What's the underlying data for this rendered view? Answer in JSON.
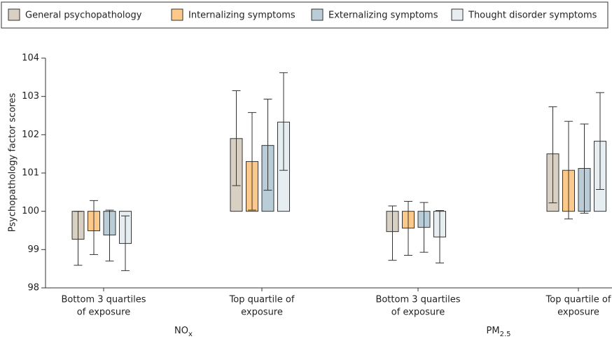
{
  "chart_data": {
    "type": "bar",
    "ylabel": "Psychopathology factor scores",
    "categories": [
      [
        "Bottom 3 quartiles",
        "of exposure"
      ],
      [
        "Top quartile of",
        "exposure"
      ],
      [
        "Bottom 3 quartiles",
        "of exposure"
      ],
      [
        "Top quartile of",
        "exposure"
      ]
    ],
    "groups": [
      {
        "main": "NO",
        "sub": "x"
      },
      {
        "main": "PM",
        "sub": "2.5"
      }
    ],
    "baseline": 100,
    "ylim": [
      98,
      104
    ],
    "yticks": [
      98,
      99,
      100,
      101,
      102,
      103,
      104
    ],
    "series": [
      {
        "name": "General psychopathology",
        "color": "#d8d0c3",
        "values": [
          99.27,
          101.9,
          99.47,
          101.5
        ],
        "low": [
          98.59,
          100.67,
          98.72,
          100.22
        ],
        "high": [
          100.0,
          103.15,
          100.14,
          102.73
        ]
      },
      {
        "name": "Internalizing symptoms",
        "color": "#fdc98a",
        "values": [
          99.49,
          101.3,
          99.56,
          101.07
        ],
        "low": [
          98.87,
          100.03,
          98.85,
          99.8
        ],
        "high": [
          100.28,
          102.58,
          100.26,
          102.35
        ]
      },
      {
        "name": "Externalizing symptoms",
        "color": "#b9cdd8",
        "values": [
          99.38,
          101.72,
          99.58,
          101.12
        ],
        "low": [
          98.7,
          100.55,
          98.93,
          99.95
        ],
        "high": [
          100.03,
          102.93,
          100.23,
          102.28
        ]
      },
      {
        "name": "Thought disorder symptoms",
        "color": "#e6eef2",
        "values": [
          99.16,
          102.33,
          99.33,
          101.83
        ],
        "low": [
          98.45,
          101.07,
          98.65,
          100.57
        ],
        "high": [
          99.88,
          103.62,
          100.02,
          103.1
        ]
      }
    ]
  }
}
